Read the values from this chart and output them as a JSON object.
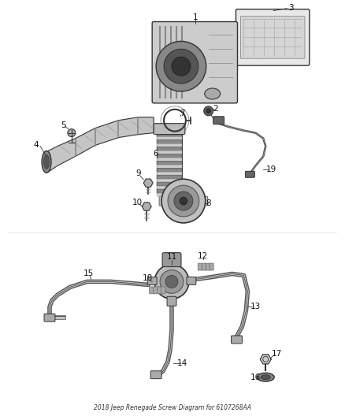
{
  "title": "2018 Jeep Renegade Screw Diagram for 6107268AA",
  "bg_color": "#ffffff",
  "fig_width": 4.38,
  "fig_height": 5.33,
  "dpi": 100
}
